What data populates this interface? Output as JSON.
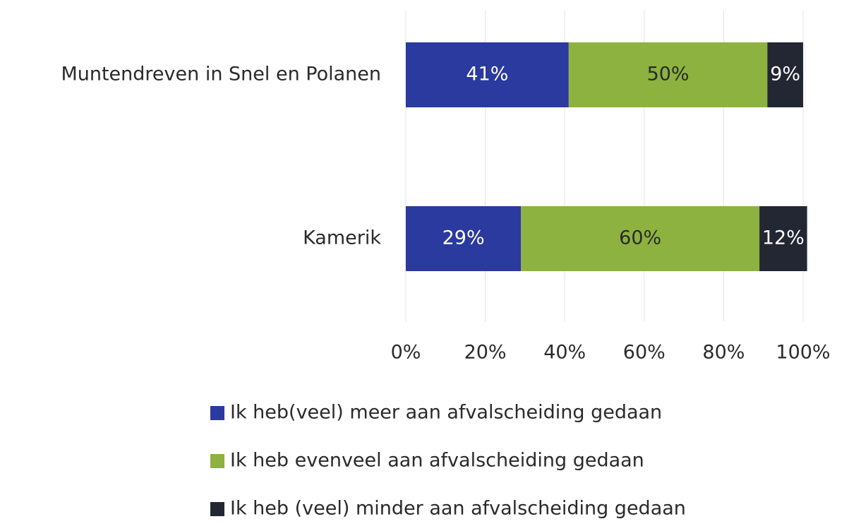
{
  "chart_data": {
    "type": "stacked-bar-horizontal",
    "categories": [
      "Muntendreven in Snel en Polanen",
      "Kamerik"
    ],
    "series": [
      {
        "name": "Ik heb(veel) meer aan afvalscheiding gedaan",
        "color": "#2b3a9e",
        "values": [
          41,
          29
        ],
        "value_labels": [
          "41%",
          "29%"
        ]
      },
      {
        "name": "Ik heb evenveel aan afvalscheiding gedaan",
        "color": "#8db23f",
        "values": [
          50,
          60
        ],
        "value_labels": [
          "50%",
          "60%"
        ]
      },
      {
        "name": "Ik heb (veel) minder aan afvalscheiding gedaan",
        "color": "#232733",
        "values": [
          9,
          12
        ],
        "value_labels": [
          "9%",
          "12%"
        ]
      }
    ],
    "xlim": [
      0,
      100
    ],
    "xticks": [
      {
        "value": 0,
        "label": "0%"
      },
      {
        "value": 20,
        "label": "20%"
      },
      {
        "value": 40,
        "label": "40%"
      },
      {
        "value": 60,
        "label": "60%"
      },
      {
        "value": 80,
        "label": "80%"
      },
      {
        "value": 100,
        "label": "100%"
      }
    ],
    "grid": true,
    "legend": "bottom"
  }
}
